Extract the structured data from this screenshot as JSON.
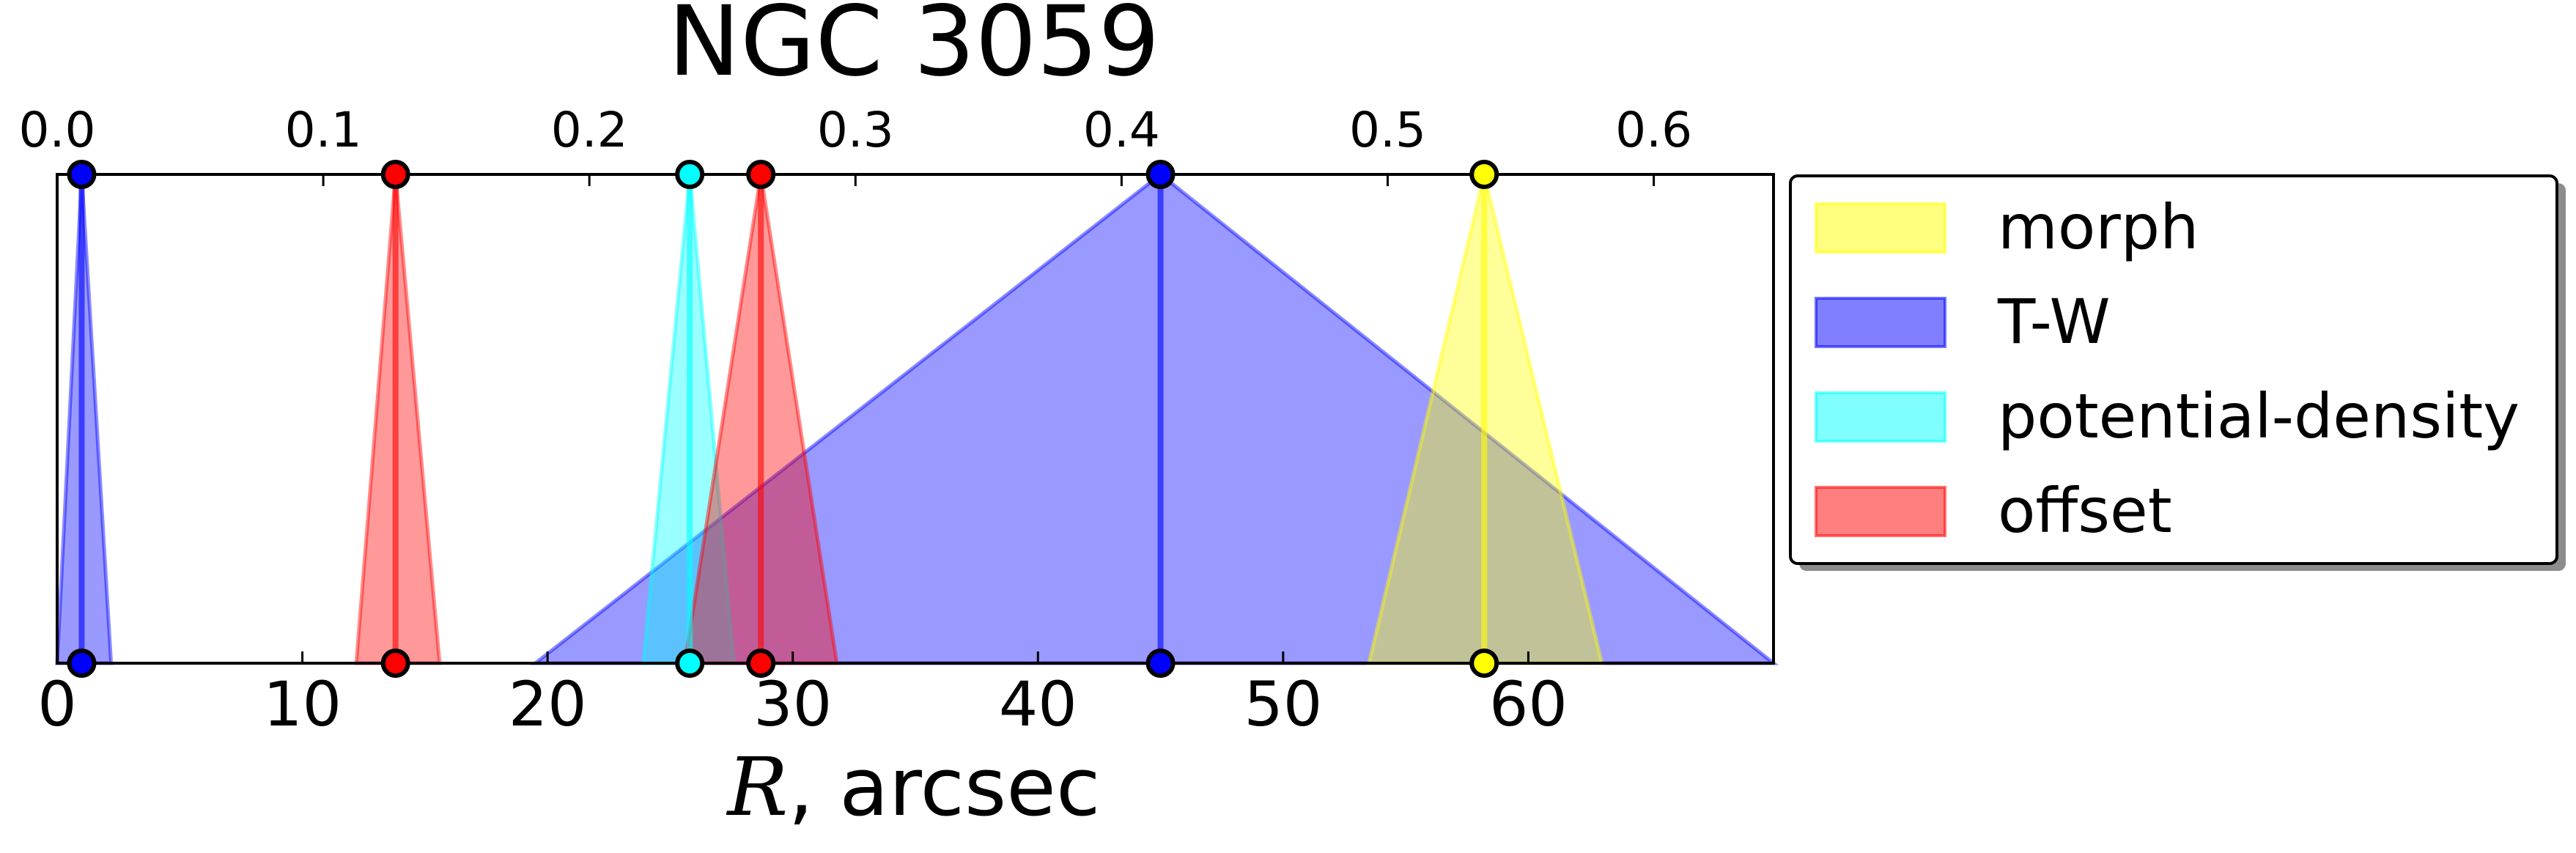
{
  "chart_data": {
    "type": "area",
    "title": "NGC 3059",
    "xlabel_math": "R",
    "xlabel_rest": ", arcsec",
    "xlim": [
      0,
      70
    ],
    "xticks": [
      0,
      10,
      20,
      30,
      40,
      50,
      60
    ],
    "top_axis": {
      "xlim": [
        0.0,
        0.645
      ],
      "ticks": [
        0.0,
        0.1,
        0.2,
        0.3,
        0.4,
        0.5,
        0.6
      ],
      "tick_labels": [
        "0.0",
        "0.1",
        "0.2",
        "0.3",
        "0.4",
        "0.5",
        "0.6"
      ]
    },
    "legend_position": "right, outside plot",
    "legend": [
      {
        "name": "morph",
        "color": "#ffff00"
      },
      {
        "name": "T-W",
        "color": "#0000ff"
      },
      {
        "name": "potential-density",
        "color": "#00ffff"
      },
      {
        "name": "offset",
        "color": "#ff0000"
      }
    ],
    "triangles": [
      {
        "series": "T-W",
        "color": "#0000ff",
        "center": 1.0,
        "left": 0.0,
        "right": 2.2
      },
      {
        "series": "offset",
        "color": "#ff0000",
        "center": 13.8,
        "left": 12.2,
        "right": 15.6
      },
      {
        "series": "T-W",
        "color": "#0000ff",
        "center": 45.0,
        "left": 19.5,
        "right": 70.0
      },
      {
        "series": "potential-density",
        "color": "#00ffff",
        "center": 25.8,
        "left": 23.9,
        "right": 27.6
      },
      {
        "series": "offset",
        "color": "#ff0000",
        "center": 28.7,
        "left": 25.6,
        "right": 31.8
      },
      {
        "series": "morph",
        "color": "#ffff00",
        "center": 58.2,
        "left": 53.5,
        "right": 63.0
      }
    ],
    "markers": [
      {
        "series": "T-W",
        "x": 1.0,
        "color": "#0000ff"
      },
      {
        "series": "offset",
        "x": 13.8,
        "color": "#ff0000"
      },
      {
        "series": "potential-density",
        "x": 25.8,
        "color": "#00ffff"
      },
      {
        "series": "offset",
        "x": 28.7,
        "color": "#ff0000"
      },
      {
        "series": "T-W",
        "x": 45.0,
        "color": "#0000ff"
      },
      {
        "series": "morph",
        "x": 58.2,
        "color": "#ffff00"
      }
    ]
  }
}
